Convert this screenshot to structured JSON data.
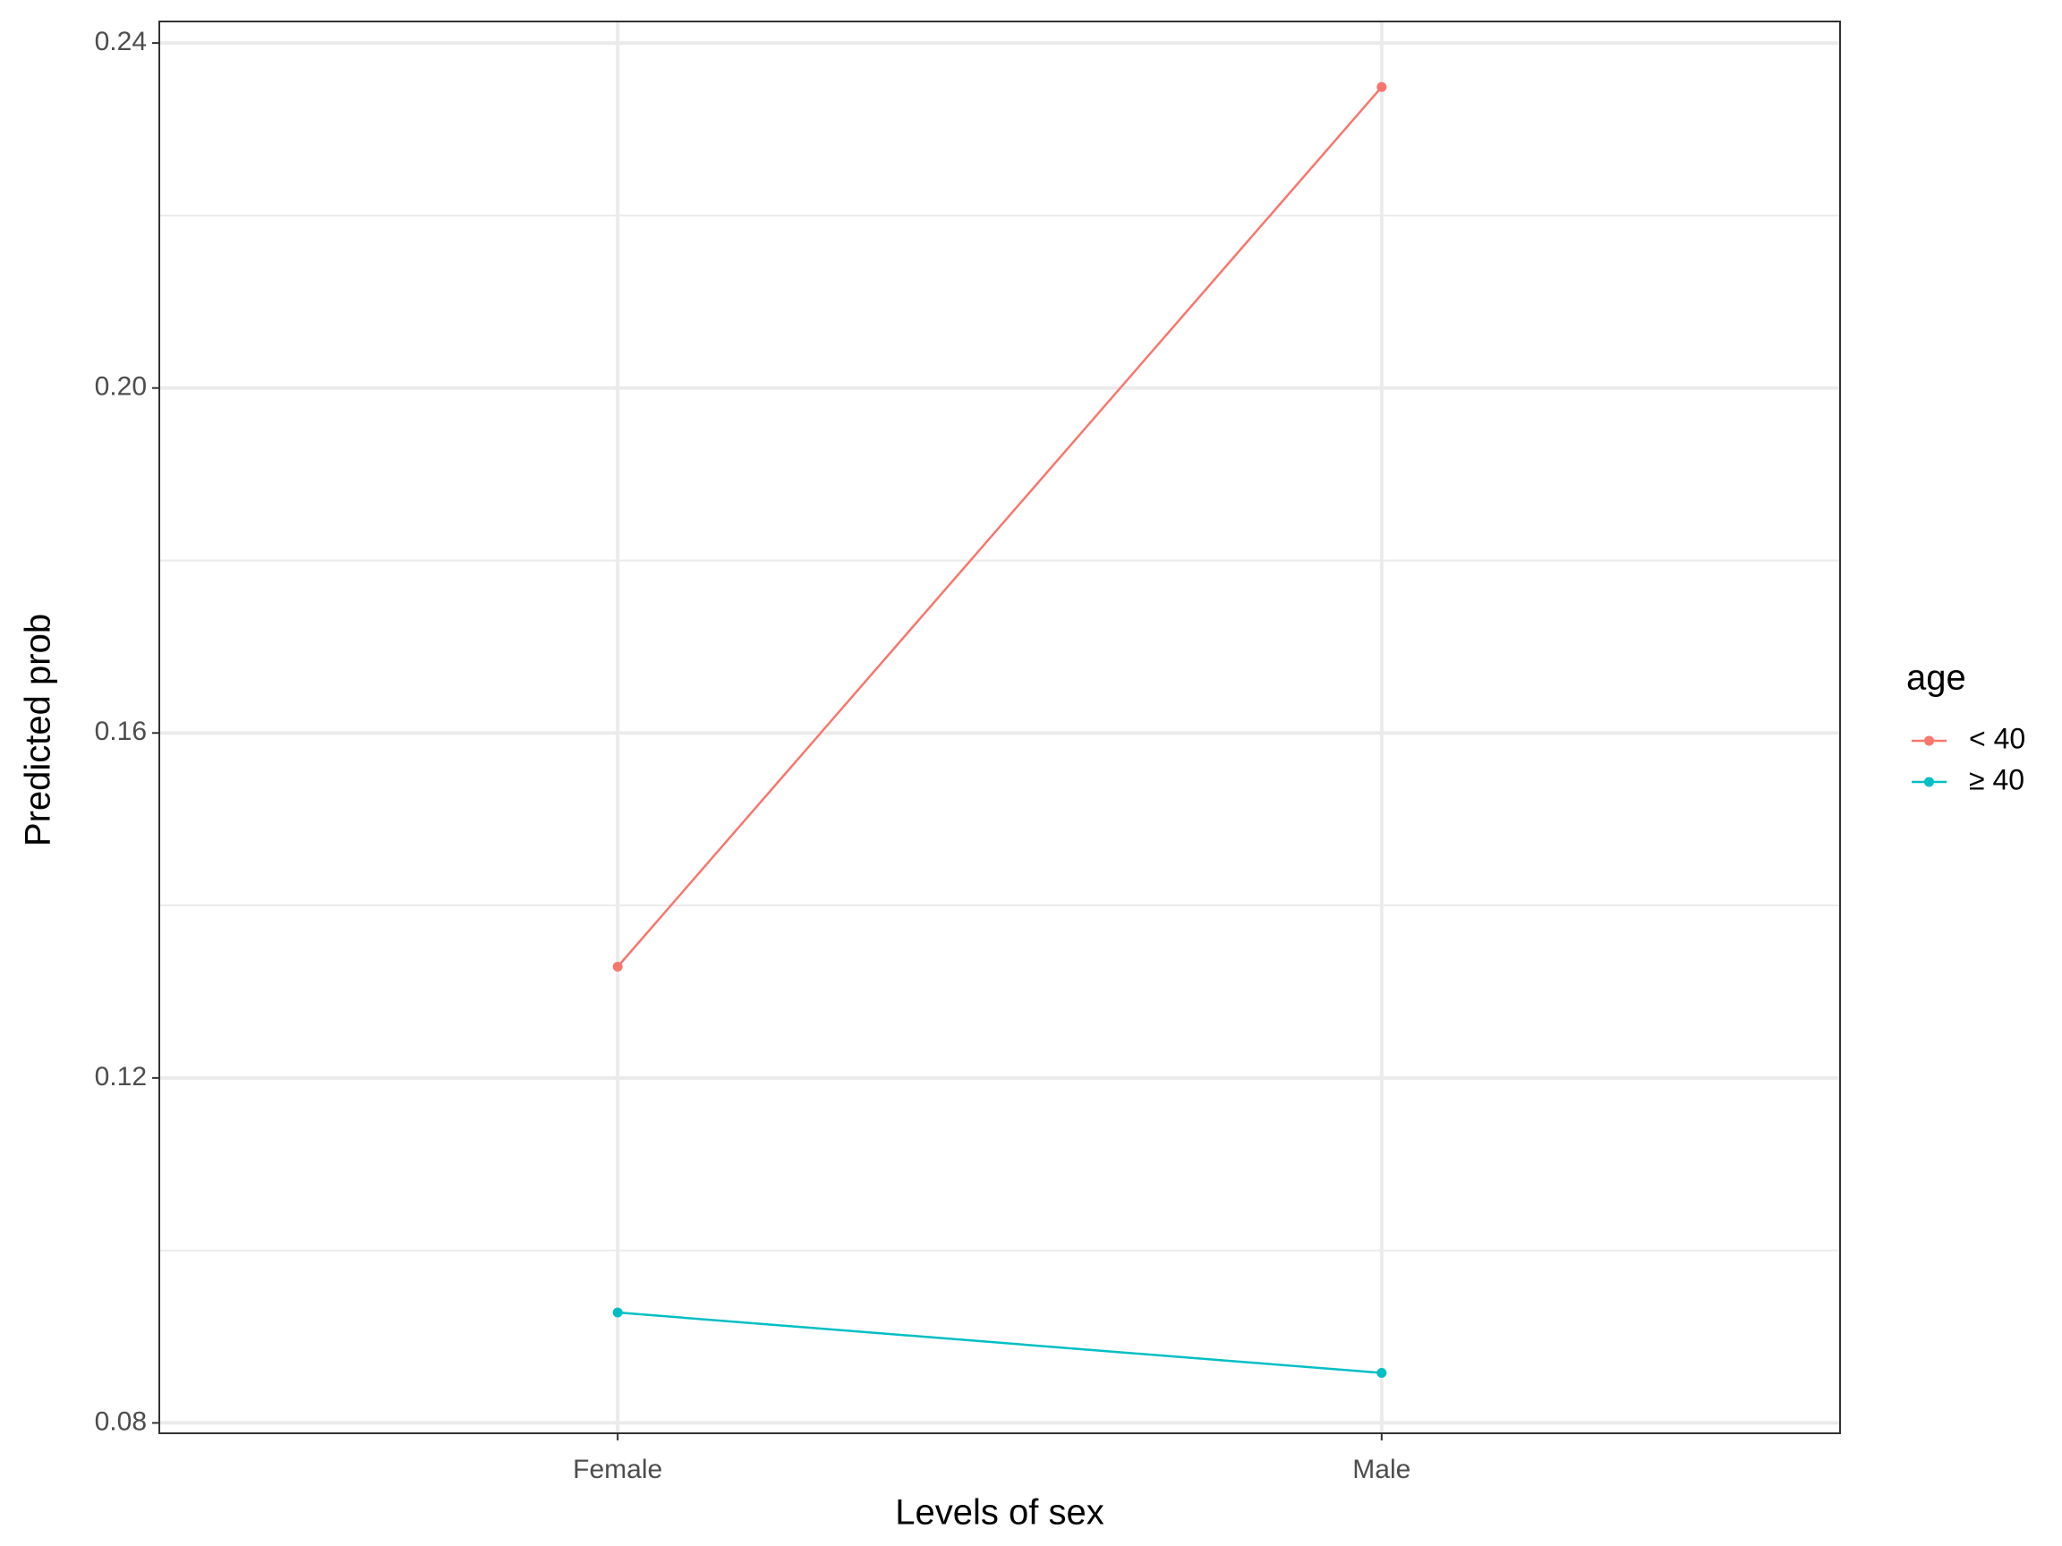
{
  "chart_data": {
    "type": "line",
    "x_label": "Levels of sex",
    "y_label": "Predicted prob",
    "categories": [
      "Female",
      "Male"
    ],
    "series": [
      {
        "name": "< 40",
        "color": "#F8766D",
        "values": [
          0.1329,
          0.2349
        ]
      },
      {
        "name": "≥ 40",
        "color": "#00BFC4",
        "values": [
          0.0928,
          0.0858
        ]
      }
    ],
    "legend_title": "age",
    "legend": "right",
    "ylim": [
      0.0788,
      0.2425
    ],
    "yticks": [
      {
        "value": 0.08,
        "label": "0.08"
      },
      {
        "value": 0.12,
        "label": "0.12"
      },
      {
        "value": 0.16,
        "label": "0.16"
      },
      {
        "value": 0.2,
        "label": "0.20"
      },
      {
        "value": 0.24,
        "label": "0.24"
      }
    ],
    "y_minor_grid": [
      0.1,
      0.14,
      0.18,
      0.22
    ],
    "grid": true
  }
}
